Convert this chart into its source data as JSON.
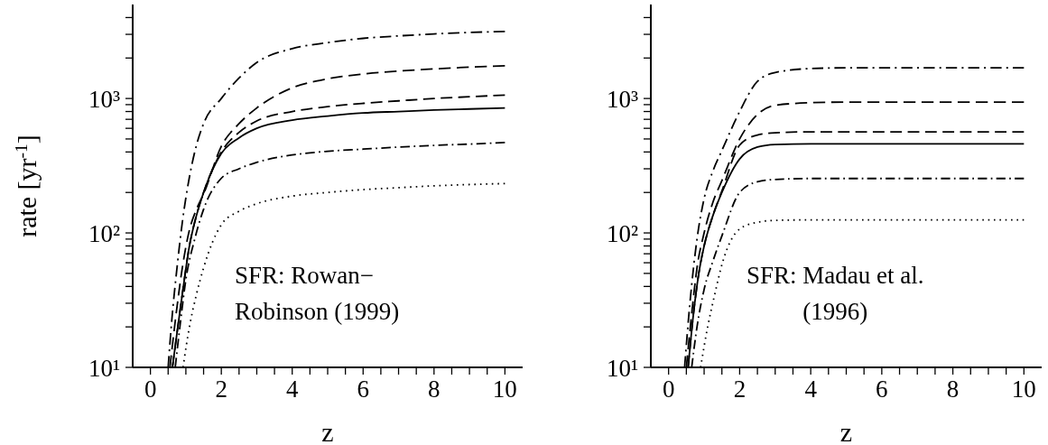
{
  "chart_data": [
    {
      "type": "line",
      "xlabel": "z",
      "ylabel": "rate [yr$^{-1}$]",
      "log": "y",
      "legend": false,
      "grid": false,
      "xlim": [
        -0.5,
        10.5
      ],
      "ylim": [
        10,
        5000
      ],
      "xticks": [
        0,
        {
          "value": 0.5,
          "label": null
        },
        {
          "value": 1,
          "label": null
        },
        {
          "value": 1.5,
          "label": null
        },
        2,
        {
          "value": 2.5,
          "label": null
        },
        {
          "value": 3,
          "label": null
        },
        {
          "value": 3.5,
          "label": null
        },
        4,
        {
          "value": 4.5,
          "label": null
        },
        {
          "value": 5,
          "label": null
        },
        {
          "value": 5.5,
          "label": null
        },
        6,
        {
          "value": 6.5,
          "label": null
        },
        {
          "value": 7,
          "label": null
        },
        {
          "value": 7.5,
          "label": null
        },
        8,
        {
          "value": 8.5,
          "label": null
        },
        {
          "value": 9,
          "label": null
        },
        {
          "value": 9.5,
          "label": null
        },
        10
      ],
      "yticks": [
        {
          "value": 10,
          "label": "10¹"
        },
        {
          "value": 20,
          "label": null
        },
        {
          "value": 30,
          "label": null
        },
        {
          "value": 40,
          "label": null
        },
        {
          "value": 50,
          "label": null
        },
        {
          "value": 60,
          "label": null
        },
        {
          "value": 70,
          "label": null
        },
        {
          "value": 80,
          "label": null
        },
        {
          "value": 90,
          "label": null
        },
        {
          "value": 100,
          "label": "10²"
        },
        {
          "value": 200,
          "label": null
        },
        {
          "value": 300,
          "label": null
        },
        {
          "value": 400,
          "label": null
        },
        {
          "value": 500,
          "label": null
        },
        {
          "value": 600,
          "label": null
        },
        {
          "value": 700,
          "label": null
        },
        {
          "value": 800,
          "label": null
        },
        {
          "value": 900,
          "label": null
        },
        {
          "value": 1000,
          "label": "10³"
        },
        {
          "value": 2000,
          "label": null
        },
        {
          "value": 3000,
          "label": null
        },
        {
          "value": 4000,
          "label": null
        }
      ],
      "annotations": [
        "SFR: Rowan−\nRobinson (1999)"
      ],
      "series": [
        {
          "color": "#000000",
          "line_style": "dashdot",
          "x": [
            0.5,
            0.6,
            0.75,
            0.9,
            1.1,
            1.3,
            1.5,
            2,
            2.5,
            3,
            4,
            5,
            6,
            7,
            8,
            9,
            10
          ],
          "values": [
            10,
            22,
            55,
            120,
            260,
            450,
            650,
            1000,
            1420,
            1850,
            2350,
            2600,
            2800,
            2920,
            3020,
            3100,
            3150
          ]
        },
        {
          "color": "#000000",
          "line_style": "dashed",
          "x": [
            0.55,
            0.7,
            0.9,
            1.1,
            1.3,
            1.5,
            2,
            2.5,
            3,
            4,
            5,
            6,
            7,
            8,
            9,
            10
          ],
          "values": [
            10,
            22,
            55,
            105,
            150,
            195,
            440,
            650,
            850,
            1200,
            1400,
            1520,
            1600,
            1660,
            1710,
            1750
          ]
        },
        {
          "color": "#000000",
          "line_style": "dashed",
          "x": [
            0.62,
            0.75,
            0.9,
            1.1,
            1.3,
            1.5,
            2,
            2.5,
            3,
            4,
            5,
            6,
            7,
            8,
            9,
            10
          ],
          "values": [
            10,
            18,
            35,
            80,
            135,
            200,
            400,
            560,
            680,
            800,
            870,
            920,
            960,
            1000,
            1030,
            1060
          ]
        },
        {
          "color": "#000000",
          "line_style": "solid",
          "x": [
            0.62,
            0.75,
            0.9,
            1.1,
            1.3,
            1.5,
            2,
            2.5,
            3,
            4,
            5,
            6,
            7,
            8,
            9,
            10
          ],
          "values": [
            10,
            18,
            35,
            80,
            135,
            200,
            390,
            510,
            600,
            690,
            740,
            780,
            800,
            820,
            835,
            850
          ]
        },
        {
          "color": "#000000",
          "line_style": "dashdot",
          "x": [
            0.7,
            0.85,
            1,
            1.25,
            1.5,
            2,
            2.5,
            3,
            4,
            5,
            6,
            7,
            8,
            9,
            10
          ],
          "values": [
            10,
            22,
            45,
            90,
            150,
            255,
            300,
            335,
            380,
            405,
            420,
            435,
            448,
            458,
            470
          ]
        },
        {
          "color": "#000000",
          "line_style": "dotted",
          "x": [
            0.92,
            1.1,
            1.3,
            1.5,
            2,
            2.5,
            3,
            4,
            5,
            6,
            7,
            8,
            9,
            10
          ],
          "values": [
            10,
            20,
            35,
            55,
            115,
            145,
            165,
            188,
            200,
            210,
            217,
            224,
            229,
            233
          ]
        }
      ]
    },
    {
      "type": "line",
      "xlabel": "z",
      "log": "y",
      "legend": false,
      "grid": false,
      "xlim": [
        -0.5,
        10.5
      ],
      "ylim": [
        10,
        5000
      ],
      "xticks": [
        0,
        {
          "value": 0.5,
          "label": null
        },
        {
          "value": 1,
          "label": null
        },
        {
          "value": 1.5,
          "label": null
        },
        2,
        {
          "value": 2.5,
          "label": null
        },
        {
          "value": 3,
          "label": null
        },
        {
          "value": 3.5,
          "label": null
        },
        4,
        {
          "value": 4.5,
          "label": null
        },
        {
          "value": 5,
          "label": null
        },
        {
          "value": 5.5,
          "label": null
        },
        6,
        {
          "value": 6.5,
          "label": null
        },
        {
          "value": 7,
          "label": null
        },
        {
          "value": 7.5,
          "label": null
        },
        8,
        {
          "value": 8.5,
          "label": null
        },
        {
          "value": 9,
          "label": null
        },
        {
          "value": 9.5,
          "label": null
        },
        10
      ],
      "yticks": [
        {
          "value": 10,
          "label": "10¹"
        },
        {
          "value": 20,
          "label": null
        },
        {
          "value": 30,
          "label": null
        },
        {
          "value": 40,
          "label": null
        },
        {
          "value": 50,
          "label": null
        },
        {
          "value": 60,
          "label": null
        },
        {
          "value": 70,
          "label": null
        },
        {
          "value": 80,
          "label": null
        },
        {
          "value": 90,
          "label": null
        },
        {
          "value": 100,
          "label": "10²"
        },
        {
          "value": 200,
          "label": null
        },
        {
          "value": 300,
          "label": null
        },
        {
          "value": 400,
          "label": null
        },
        {
          "value": 500,
          "label": null
        },
        {
          "value": 600,
          "label": null
        },
        {
          "value": 700,
          "label": null
        },
        {
          "value": 800,
          "label": null
        },
        {
          "value": 900,
          "label": null
        },
        {
          "value": 1000,
          "label": "10³"
        },
        {
          "value": 2000,
          "label": null
        },
        {
          "value": 3000,
          "label": null
        },
        {
          "value": 4000,
          "label": null
        }
      ],
      "annotations": [
        "SFR: Madau et al.\n(1996)"
      ],
      "series": [
        {
          "color": "#000000",
          "line_style": "dashdot",
          "x": [
            0.45,
            0.6,
            0.8,
            1,
            1.25,
            1.5,
            2,
            2.5,
            3,
            4,
            5,
            6,
            8,
            10
          ],
          "values": [
            10,
            30,
            90,
            180,
            290,
            410,
            800,
            1340,
            1560,
            1670,
            1690,
            1690,
            1690,
            1690
          ]
        },
        {
          "color": "#000000",
          "line_style": "dashed",
          "x": [
            0.5,
            0.65,
            0.8,
            1,
            1.25,
            1.5,
            2,
            2.5,
            3,
            4,
            5,
            10
          ],
          "values": [
            10,
            25,
            55,
            100,
            170,
            245,
            500,
            760,
            890,
            930,
            940,
            940
          ]
        },
        {
          "color": "#000000",
          "line_style": "dashed",
          "x": [
            0.55,
            0.7,
            0.85,
            1,
            1.25,
            1.5,
            2,
            2.5,
            3,
            4,
            10
          ],
          "values": [
            10,
            25,
            50,
            80,
            135,
            205,
            450,
            535,
            555,
            565,
            565
          ]
        },
        {
          "color": "#000000",
          "line_style": "solid",
          "x": [
            0.55,
            0.7,
            0.85,
            1,
            1.25,
            1.5,
            2,
            2.5,
            3,
            4,
            10
          ],
          "values": [
            10,
            25,
            50,
            80,
            135,
            200,
            355,
            435,
            455,
            460,
            460
          ]
        },
        {
          "color": "#000000",
          "line_style": "dashdot",
          "x": [
            0.65,
            0.8,
            1,
            1.25,
            1.5,
            2,
            2.5,
            3,
            4,
            10
          ],
          "values": [
            10,
            20,
            38,
            62,
            95,
            200,
            240,
            250,
            254,
            254
          ]
        },
        {
          "color": "#000000",
          "line_style": "dotted",
          "x": [
            0.9,
            1.1,
            1.3,
            1.5,
            2,
            2.5,
            3,
            4,
            10
          ],
          "values": [
            10,
            20,
            35,
            58,
            107,
            120,
            124,
            125,
            125
          ]
        }
      ]
    }
  ]
}
